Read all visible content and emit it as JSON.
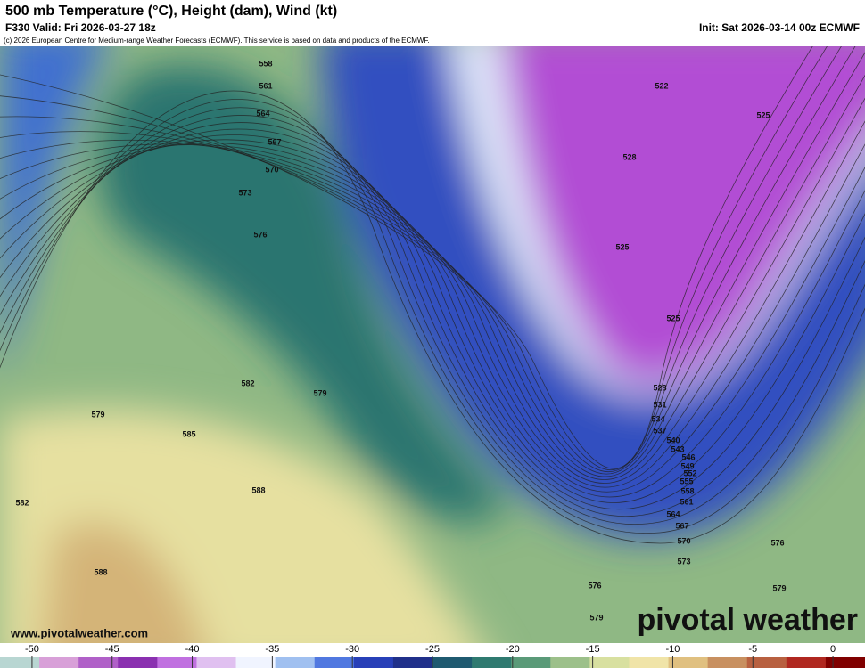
{
  "header": {
    "title": "500 mb Temperature (°C), Height (dam), Wind (kt)",
    "subtitle": "F330 Valid: Fri 2026-03-27 18z",
    "init": "Init: Sat 2026-03-14 00z ECMWF",
    "copyright": "(c) 2026 European Centre for Medium-range Weather Forecasts (ECMWF). This service is based on data and products of the ECMWF."
  },
  "map": {
    "contour_labels": [
      558,
      561,
      564,
      567,
      570,
      573,
      576,
      582,
      579,
      579,
      585,
      588,
      582,
      588,
      522,
      525,
      528,
      525,
      525,
      528,
      531,
      534,
      537,
      540,
      543,
      546,
      549,
      552,
      555,
      558,
      561,
      564,
      567,
      570,
      573,
      576,
      576,
      579,
      579
    ]
  },
  "colorbar": {
    "range": [
      -52,
      2
    ],
    "ticks": [
      -50,
      -45,
      -40,
      -35,
      -30,
      -25,
      -20,
      -15,
      -10,
      -5,
      0
    ],
    "colors": [
      "#b8d6d2",
      "#d8a0d8",
      "#b060c8",
      "#8a30b0",
      "#c070e0",
      "#e0c0f0",
      "#f0f4ff",
      "#a0c0f0",
      "#5078e0",
      "#2840b8",
      "#20308a",
      "#1f5a70",
      "#2f7a70",
      "#5a9a78",
      "#9cc08a",
      "#d8e0a0",
      "#f0e4a8",
      "#e0c080",
      "#c89060",
      "#b86040",
      "#b02820",
      "#800000"
    ]
  },
  "watermark": {
    "url": "www.pivotalweather.com",
    "brand": "pivotal weather"
  }
}
